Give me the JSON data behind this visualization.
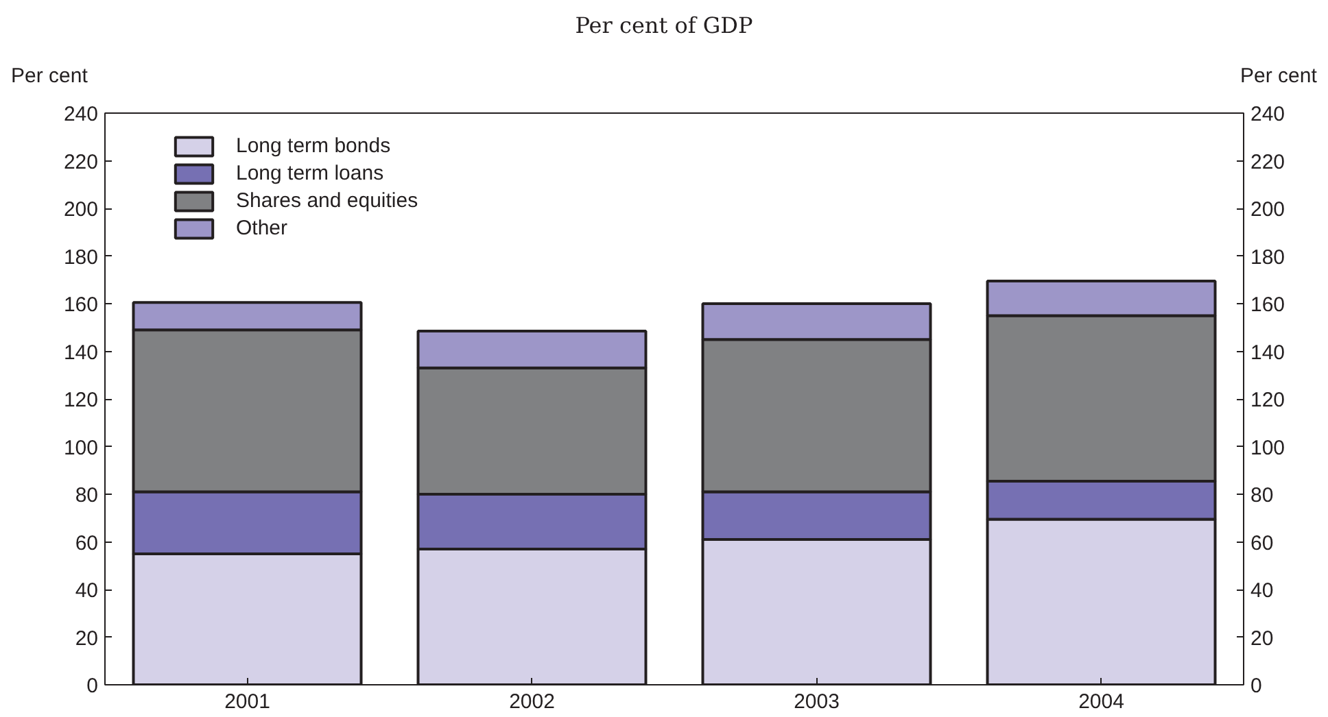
{
  "chart_data": {
    "type": "bar",
    "subtitle": "Per cent of GDP",
    "ylabel": "Per cent",
    "y2label": "Per cent",
    "categories": [
      "2001",
      "2002",
      "2003",
      "2004"
    ],
    "series": [
      {
        "name": "Long term bonds",
        "color": "#d5d1e8",
        "values": [
          55,
          57,
          61,
          69.5
        ]
      },
      {
        "name": "Long term loans",
        "color": "#7670b3",
        "values": [
          26,
          23,
          20,
          16
        ]
      },
      {
        "name": "Shares and equities",
        "color": "#808183",
        "values": [
          68,
          53,
          64,
          69.5
        ]
      },
      {
        "name": "Other",
        "color": "#9d96c8",
        "values": [
          11.5,
          15.5,
          15,
          14.5
        ]
      }
    ],
    "stacked": true,
    "ylim": [
      0,
      240
    ],
    "yticks": [
      0,
      20,
      40,
      60,
      80,
      100,
      120,
      140,
      160,
      180,
      200,
      220,
      240
    ],
    "y2lim": [
      0,
      240
    ],
    "y2ticks": [
      0,
      20,
      40,
      60,
      80,
      100,
      120,
      140,
      160,
      180,
      200,
      220,
      240
    ],
    "grid": false,
    "legend": "top left"
  }
}
